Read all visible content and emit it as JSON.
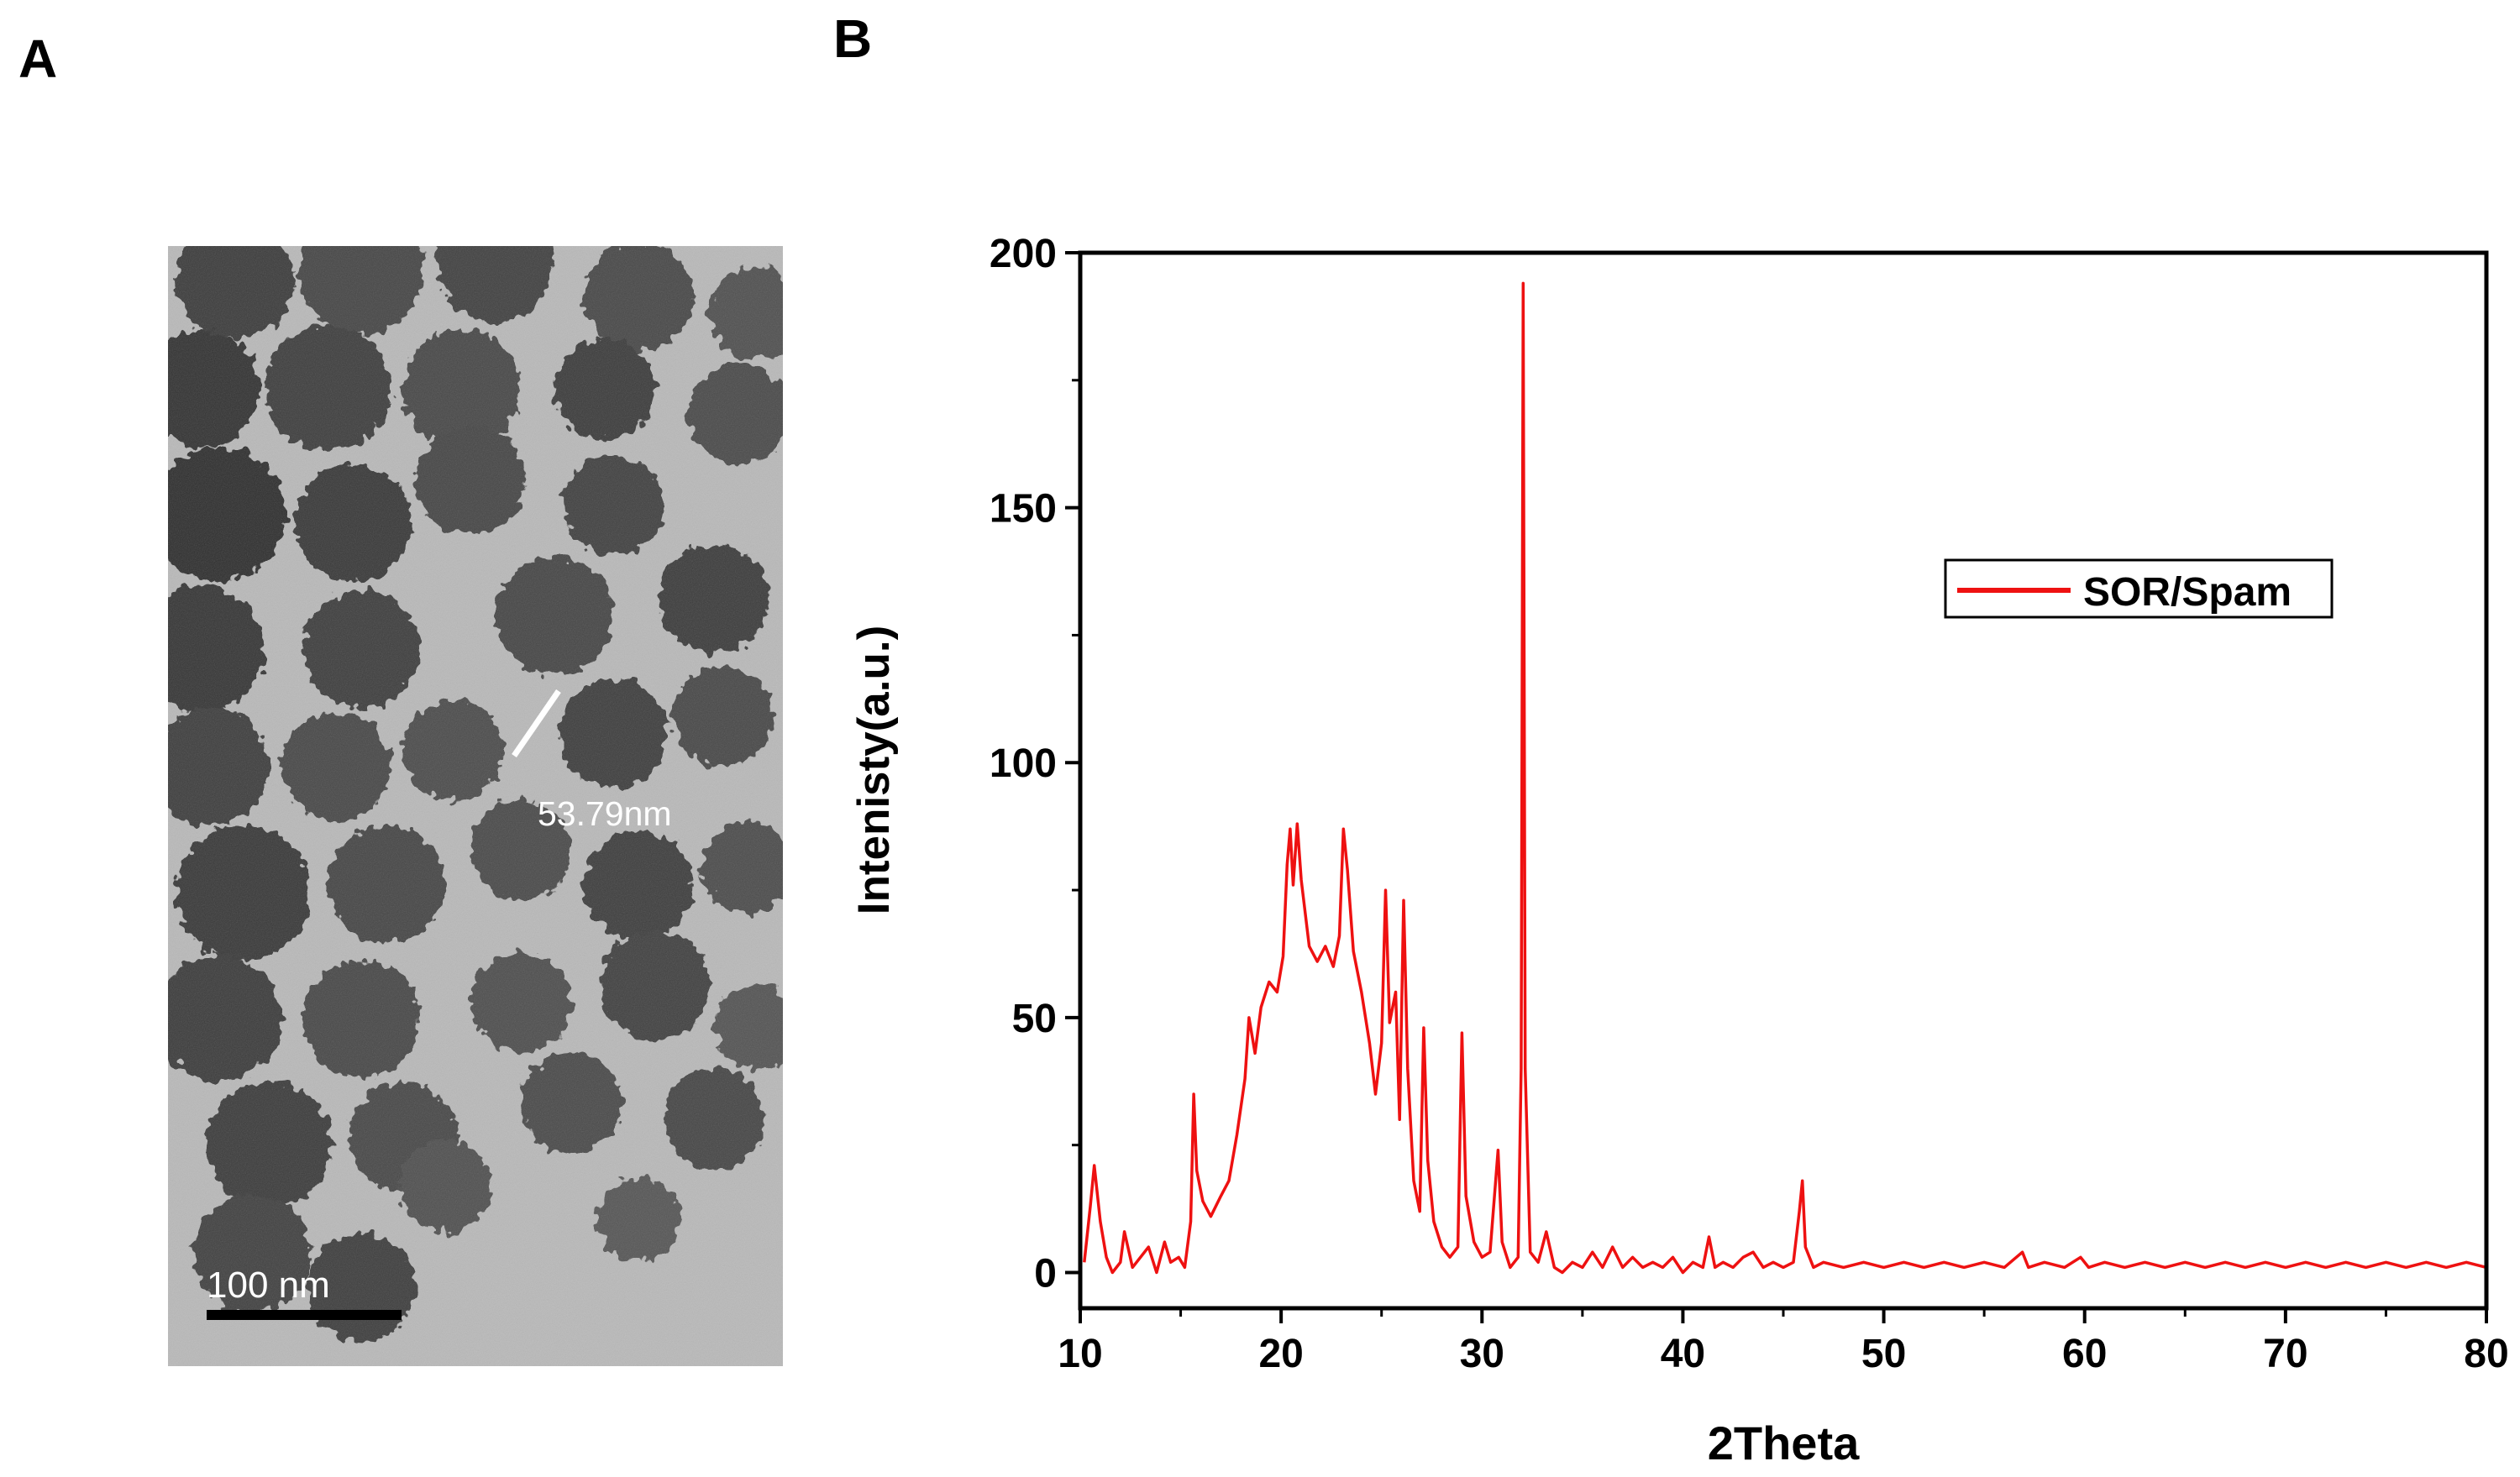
{
  "panels": {
    "a_label": "A",
    "b_label": "B"
  },
  "tem_image": {
    "measurement_label": "53.79nm",
    "scale_bar_label": "100 nm"
  },
  "colors": {
    "series": "#ee1111",
    "axis": "#000000"
  },
  "chart_data": {
    "type": "line",
    "title": "",
    "xlabel": "2Theta",
    "ylabel": "Intenisty(a.u.)",
    "xlim": [
      10,
      80
    ],
    "ylim": [
      -7,
      200
    ],
    "xticks": [
      10,
      20,
      30,
      40,
      50,
      60,
      70,
      80
    ],
    "yticks": [
      0,
      50,
      100,
      150,
      200
    ],
    "legend": {
      "position": "top-right",
      "entries": [
        "SOR/Spam"
      ]
    },
    "series": [
      {
        "name": "SOR/Spam",
        "points": [
          [
            10.2,
            2
          ],
          [
            10.5,
            13
          ],
          [
            10.7,
            21
          ],
          [
            11.0,
            10
          ],
          [
            11.3,
            3
          ],
          [
            11.6,
            0
          ],
          [
            12.0,
            2
          ],
          [
            12.2,
            8
          ],
          [
            12.6,
            1
          ],
          [
            13.0,
            3
          ],
          [
            13.4,
            5
          ],
          [
            13.8,
            0
          ],
          [
            14.2,
            6
          ],
          [
            14.5,
            2
          ],
          [
            14.9,
            3
          ],
          [
            15.2,
            1
          ],
          [
            15.5,
            10
          ],
          [
            15.65,
            35
          ],
          [
            15.8,
            20
          ],
          [
            16.1,
            14
          ],
          [
            16.5,
            11
          ],
          [
            17.0,
            15
          ],
          [
            17.4,
            18
          ],
          [
            17.8,
            27
          ],
          [
            18.2,
            38
          ],
          [
            18.4,
            50
          ],
          [
            18.7,
            43
          ],
          [
            19.0,
            52
          ],
          [
            19.4,
            57
          ],
          [
            19.8,
            55
          ],
          [
            20.1,
            62
          ],
          [
            20.3,
            80
          ],
          [
            20.45,
            87
          ],
          [
            20.6,
            76
          ],
          [
            20.8,
            88
          ],
          [
            21.0,
            77
          ],
          [
            21.4,
            64
          ],
          [
            21.8,
            61
          ],
          [
            22.2,
            64
          ],
          [
            22.6,
            60
          ],
          [
            22.9,
            66
          ],
          [
            23.1,
            87
          ],
          [
            23.3,
            79
          ],
          [
            23.6,
            63
          ],
          [
            24.0,
            55
          ],
          [
            24.4,
            45
          ],
          [
            24.7,
            35
          ],
          [
            25.0,
            45
          ],
          [
            25.2,
            75
          ],
          [
            25.4,
            49
          ],
          [
            25.7,
            55
          ],
          [
            25.9,
            30
          ],
          [
            26.1,
            73
          ],
          [
            26.3,
            40
          ],
          [
            26.6,
            18
          ],
          [
            26.9,
            12
          ],
          [
            27.1,
            48
          ],
          [
            27.3,
            22
          ],
          [
            27.6,
            10
          ],
          [
            28.0,
            5
          ],
          [
            28.4,
            3
          ],
          [
            28.8,
            5
          ],
          [
            29.0,
            47
          ],
          [
            29.2,
            15
          ],
          [
            29.6,
            6
          ],
          [
            30.0,
            3
          ],
          [
            30.4,
            4
          ],
          [
            30.8,
            24
          ],
          [
            31.0,
            6
          ],
          [
            31.4,
            1
          ],
          [
            31.8,
            3
          ],
          [
            31.95,
            40
          ],
          [
            32.05,
            194
          ],
          [
            32.15,
            40
          ],
          [
            32.4,
            4
          ],
          [
            32.8,
            2
          ],
          [
            33.2,
            8
          ],
          [
            33.6,
            1
          ],
          [
            34.0,
            0
          ],
          [
            34.5,
            2
          ],
          [
            35.0,
            1
          ],
          [
            35.5,
            4
          ],
          [
            36.0,
            1
          ],
          [
            36.5,
            5
          ],
          [
            37.0,
            1
          ],
          [
            37.5,
            3
          ],
          [
            38.0,
            1
          ],
          [
            38.5,
            2
          ],
          [
            39.0,
            1
          ],
          [
            39.5,
            3
          ],
          [
            40.0,
            0
          ],
          [
            40.5,
            2
          ],
          [
            41.0,
            1
          ],
          [
            41.3,
            7
          ],
          [
            41.6,
            1
          ],
          [
            42.0,
            2
          ],
          [
            42.5,
            1
          ],
          [
            43.0,
            3
          ],
          [
            43.5,
            4
          ],
          [
            44.0,
            1
          ],
          [
            44.5,
            2
          ],
          [
            45.0,
            1
          ],
          [
            45.5,
            2
          ],
          [
            45.8,
            12
          ],
          [
            45.95,
            18
          ],
          [
            46.1,
            5
          ],
          [
            46.5,
            1
          ],
          [
            47.0,
            2
          ],
          [
            48.0,
            1
          ],
          [
            49.0,
            2
          ],
          [
            50.0,
            1
          ],
          [
            51.0,
            2
          ],
          [
            52.0,
            1
          ],
          [
            53.0,
            2
          ],
          [
            54.0,
            1
          ],
          [
            55.0,
            2
          ],
          [
            56.0,
            1
          ],
          [
            56.9,
            4
          ],
          [
            57.2,
            1
          ],
          [
            58.0,
            2
          ],
          [
            59.0,
            1
          ],
          [
            59.8,
            3
          ],
          [
            60.2,
            1
          ],
          [
            61.0,
            2
          ],
          [
            62.0,
            1
          ],
          [
            63.0,
            2
          ],
          [
            64.0,
            1
          ],
          [
            65.0,
            2
          ],
          [
            66.0,
            1
          ],
          [
            67.0,
            2
          ],
          [
            68.0,
            1
          ],
          [
            69.0,
            2
          ],
          [
            70.0,
            1
          ],
          [
            71.0,
            2
          ],
          [
            72.0,
            1
          ],
          [
            73.0,
            2
          ],
          [
            74.0,
            1
          ],
          [
            75.0,
            2
          ],
          [
            76.0,
            1
          ],
          [
            77.0,
            2
          ],
          [
            78.0,
            1
          ],
          [
            79.0,
            2
          ],
          [
            80.0,
            1
          ]
        ]
      }
    ]
  }
}
